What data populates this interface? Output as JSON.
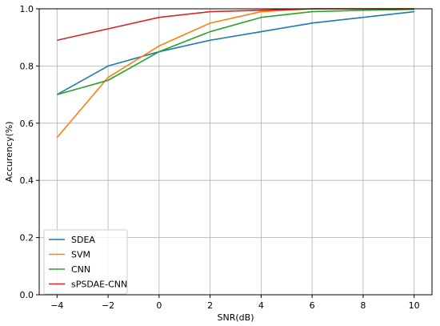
{
  "chart_data": {
    "type": "line",
    "title": "",
    "xlabel": "SNR(dB)",
    "ylabel": "Accurency(%)",
    "x": [
      -4,
      -2,
      0,
      2,
      4,
      6,
      8,
      10
    ],
    "xlim": [
      -4.7,
      10.7
    ],
    "ylim": [
      0,
      1.0
    ],
    "xticks": [
      -4,
      -2,
      0,
      2,
      4,
      6,
      8,
      10
    ],
    "yticks": [
      0.0,
      0.2,
      0.4,
      0.6,
      0.8,
      1.0
    ],
    "xtick_labels": [
      "−4",
      "−2",
      "0",
      "2",
      "4",
      "6",
      "8",
      "10"
    ],
    "ytick_labels": [
      "0.0",
      "0.2",
      "0.4",
      "0.6",
      "0.8",
      "1.0"
    ],
    "grid": true,
    "legend_position": "lower-left",
    "series": [
      {
        "name": "SDEA",
        "color": "#1f77b4",
        "values": [
          0.7,
          0.8,
          0.85,
          0.89,
          0.92,
          0.95,
          0.97,
          0.99
        ]
      },
      {
        "name": "SVM",
        "color": "#ff7f0e",
        "values": [
          0.55,
          0.76,
          0.87,
          0.95,
          0.99,
          1.0,
          1.0,
          1.0
        ]
      },
      {
        "name": "CNN",
        "color": "#2ca02c",
        "values": [
          0.7,
          0.75,
          0.85,
          0.92,
          0.97,
          0.99,
          0.995,
          0.998
        ]
      },
      {
        "name": "sPSDAE-CNN",
        "color": "#d62728",
        "values": [
          0.89,
          0.93,
          0.97,
          0.99,
          0.995,
          1.0,
          1.0,
          1.0
        ]
      }
    ]
  }
}
